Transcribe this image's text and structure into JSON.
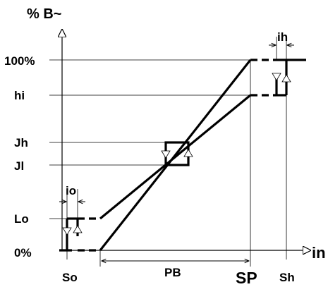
{
  "labels": {
    "y_title": "% B~",
    "x_title": "in",
    "y_100": "100%",
    "y_hi": "hi",
    "y_jh": "Jh",
    "y_jl": "Jl",
    "y_lo": "Lo",
    "y_0": "0%",
    "x_so": "So",
    "x_sp": "SP",
    "x_sh": "Sh",
    "pb": "PB",
    "io": "io",
    "ih": "ih"
  }
}
